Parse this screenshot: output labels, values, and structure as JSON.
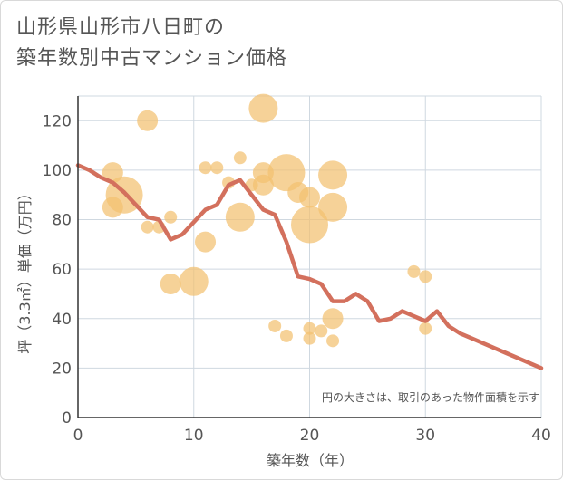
{
  "title_line1": "山形県山形市八日町の",
  "title_line2": "築年数別中古マンション価格",
  "chart_data": {
    "type": "scatter",
    "xlabel": "築年数（年）",
    "ylabel": "坪（3.3㎡）単価（万円）",
    "xlim": [
      0,
      40
    ],
    "ylim": [
      0,
      130
    ],
    "xticks": [
      0,
      10,
      20,
      30,
      40
    ],
    "yticks": [
      0,
      20,
      40,
      60,
      80,
      100,
      120
    ],
    "grid": true,
    "note": "円の大きさは、取引のあった物件面積を示す",
    "colors": {
      "bubble": "#f3c170",
      "line": "#d3705d",
      "grid": "#cfd8e0",
      "axis": "#333333"
    },
    "bubbles": [
      {
        "x": 3,
        "y": 99,
        "s": 2
      },
      {
        "x": 3,
        "y": 85,
        "s": 2
      },
      {
        "x": 4,
        "y": 90,
        "s": 4
      },
      {
        "x": 6,
        "y": 120,
        "s": 2
      },
      {
        "x": 6,
        "y": 77,
        "s": 1
      },
      {
        "x": 7,
        "y": 77,
        "s": 1
      },
      {
        "x": 8,
        "y": 81,
        "s": 1
      },
      {
        "x": 8,
        "y": 54,
        "s": 2
      },
      {
        "x": 10,
        "y": 55,
        "s": 3
      },
      {
        "x": 11,
        "y": 101,
        "s": 1
      },
      {
        "x": 11,
        "y": 71,
        "s": 2
      },
      {
        "x": 12,
        "y": 101,
        "s": 1
      },
      {
        "x": 13,
        "y": 95,
        "s": 1
      },
      {
        "x": 14,
        "y": 105,
        "s": 1
      },
      {
        "x": 14,
        "y": 81,
        "s": 3
      },
      {
        "x": 15,
        "y": 94,
        "s": 1
      },
      {
        "x": 16,
        "y": 125,
        "s": 3
      },
      {
        "x": 16,
        "y": 99,
        "s": 2
      },
      {
        "x": 16,
        "y": 94,
        "s": 2
      },
      {
        "x": 17,
        "y": 37,
        "s": 1
      },
      {
        "x": 18,
        "y": 99,
        "s": 4
      },
      {
        "x": 18,
        "y": 33,
        "s": 1
      },
      {
        "x": 19,
        "y": 91,
        "s": 2
      },
      {
        "x": 20,
        "y": 89,
        "s": 2
      },
      {
        "x": 20,
        "y": 78,
        "s": 4
      },
      {
        "x": 20,
        "y": 36,
        "s": 1
      },
      {
        "x": 20,
        "y": 32,
        "s": 1
      },
      {
        "x": 21,
        "y": 35,
        "s": 1
      },
      {
        "x": 22,
        "y": 98,
        "s": 3
      },
      {
        "x": 22,
        "y": 85,
        "s": 3
      },
      {
        "x": 22,
        "y": 40,
        "s": 2
      },
      {
        "x": 22,
        "y": 31,
        "s": 1
      },
      {
        "x": 29,
        "y": 59,
        "s": 1
      },
      {
        "x": 30,
        "y": 57,
        "s": 1
      },
      {
        "x": 30,
        "y": 36,
        "s": 1
      }
    ],
    "trend": {
      "x": [
        0,
        1,
        2,
        3,
        4,
        5,
        6,
        7,
        8,
        9,
        10,
        11,
        12,
        13,
        14,
        15,
        16,
        17,
        18,
        19,
        20,
        21,
        22,
        23,
        24,
        25,
        26,
        27,
        28,
        29,
        30,
        31,
        32,
        33,
        34,
        35,
        36,
        37,
        38,
        39,
        40
      ],
      "y": [
        102,
        100,
        97,
        95,
        91,
        86,
        81,
        80,
        72,
        74,
        79,
        84,
        86,
        94,
        96,
        90,
        84,
        82,
        71,
        57,
        56,
        54,
        47,
        47,
        50,
        47,
        39,
        40,
        43,
        41,
        39,
        43,
        37,
        34,
        32,
        30,
        28,
        26,
        24,
        22,
        20
      ]
    }
  }
}
